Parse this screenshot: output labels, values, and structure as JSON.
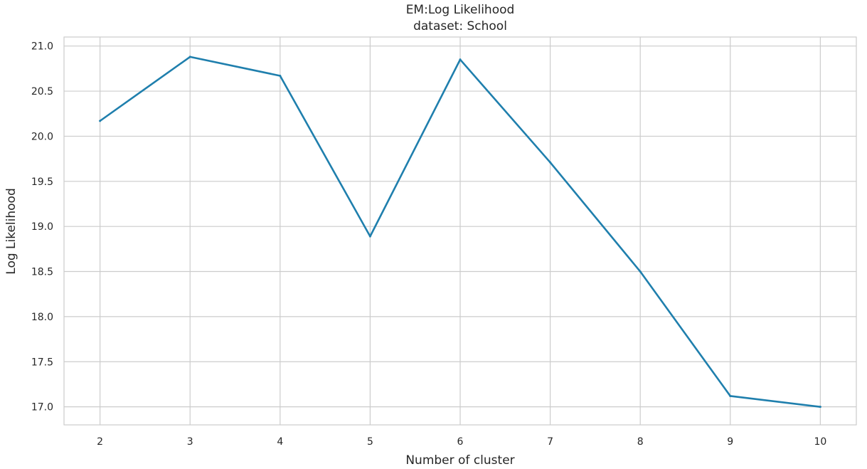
{
  "chart_data": {
    "type": "line",
    "title": "EM:Log Likelihood",
    "subtitle": "dataset: School",
    "xlabel": "Number of cluster",
    "ylabel": "Log Likelihood",
    "x": [
      2,
      3,
      4,
      5,
      6,
      7,
      8,
      9,
      10
    ],
    "series": [
      {
        "values": [
          20.17,
          20.88,
          20.67,
          18.89,
          20.85,
          19.71,
          18.5,
          17.12,
          17.0
        ],
        "color": "#1f7fad"
      }
    ],
    "x_ticks": [
      "2",
      "3",
      "4",
      "5",
      "6",
      "7",
      "8",
      "9",
      "10"
    ],
    "y_ticks": [
      "17.0",
      "17.5",
      "18.0",
      "18.5",
      "19.0",
      "19.5",
      "20.0",
      "20.5",
      "21.0"
    ],
    "xlim": [
      1.6,
      10.4
    ],
    "ylim": [
      16.8,
      21.1
    ],
    "grid": true,
    "colors": {
      "grid": "#cccccc",
      "text": "#262626",
      "line": "#1f7fad"
    }
  }
}
